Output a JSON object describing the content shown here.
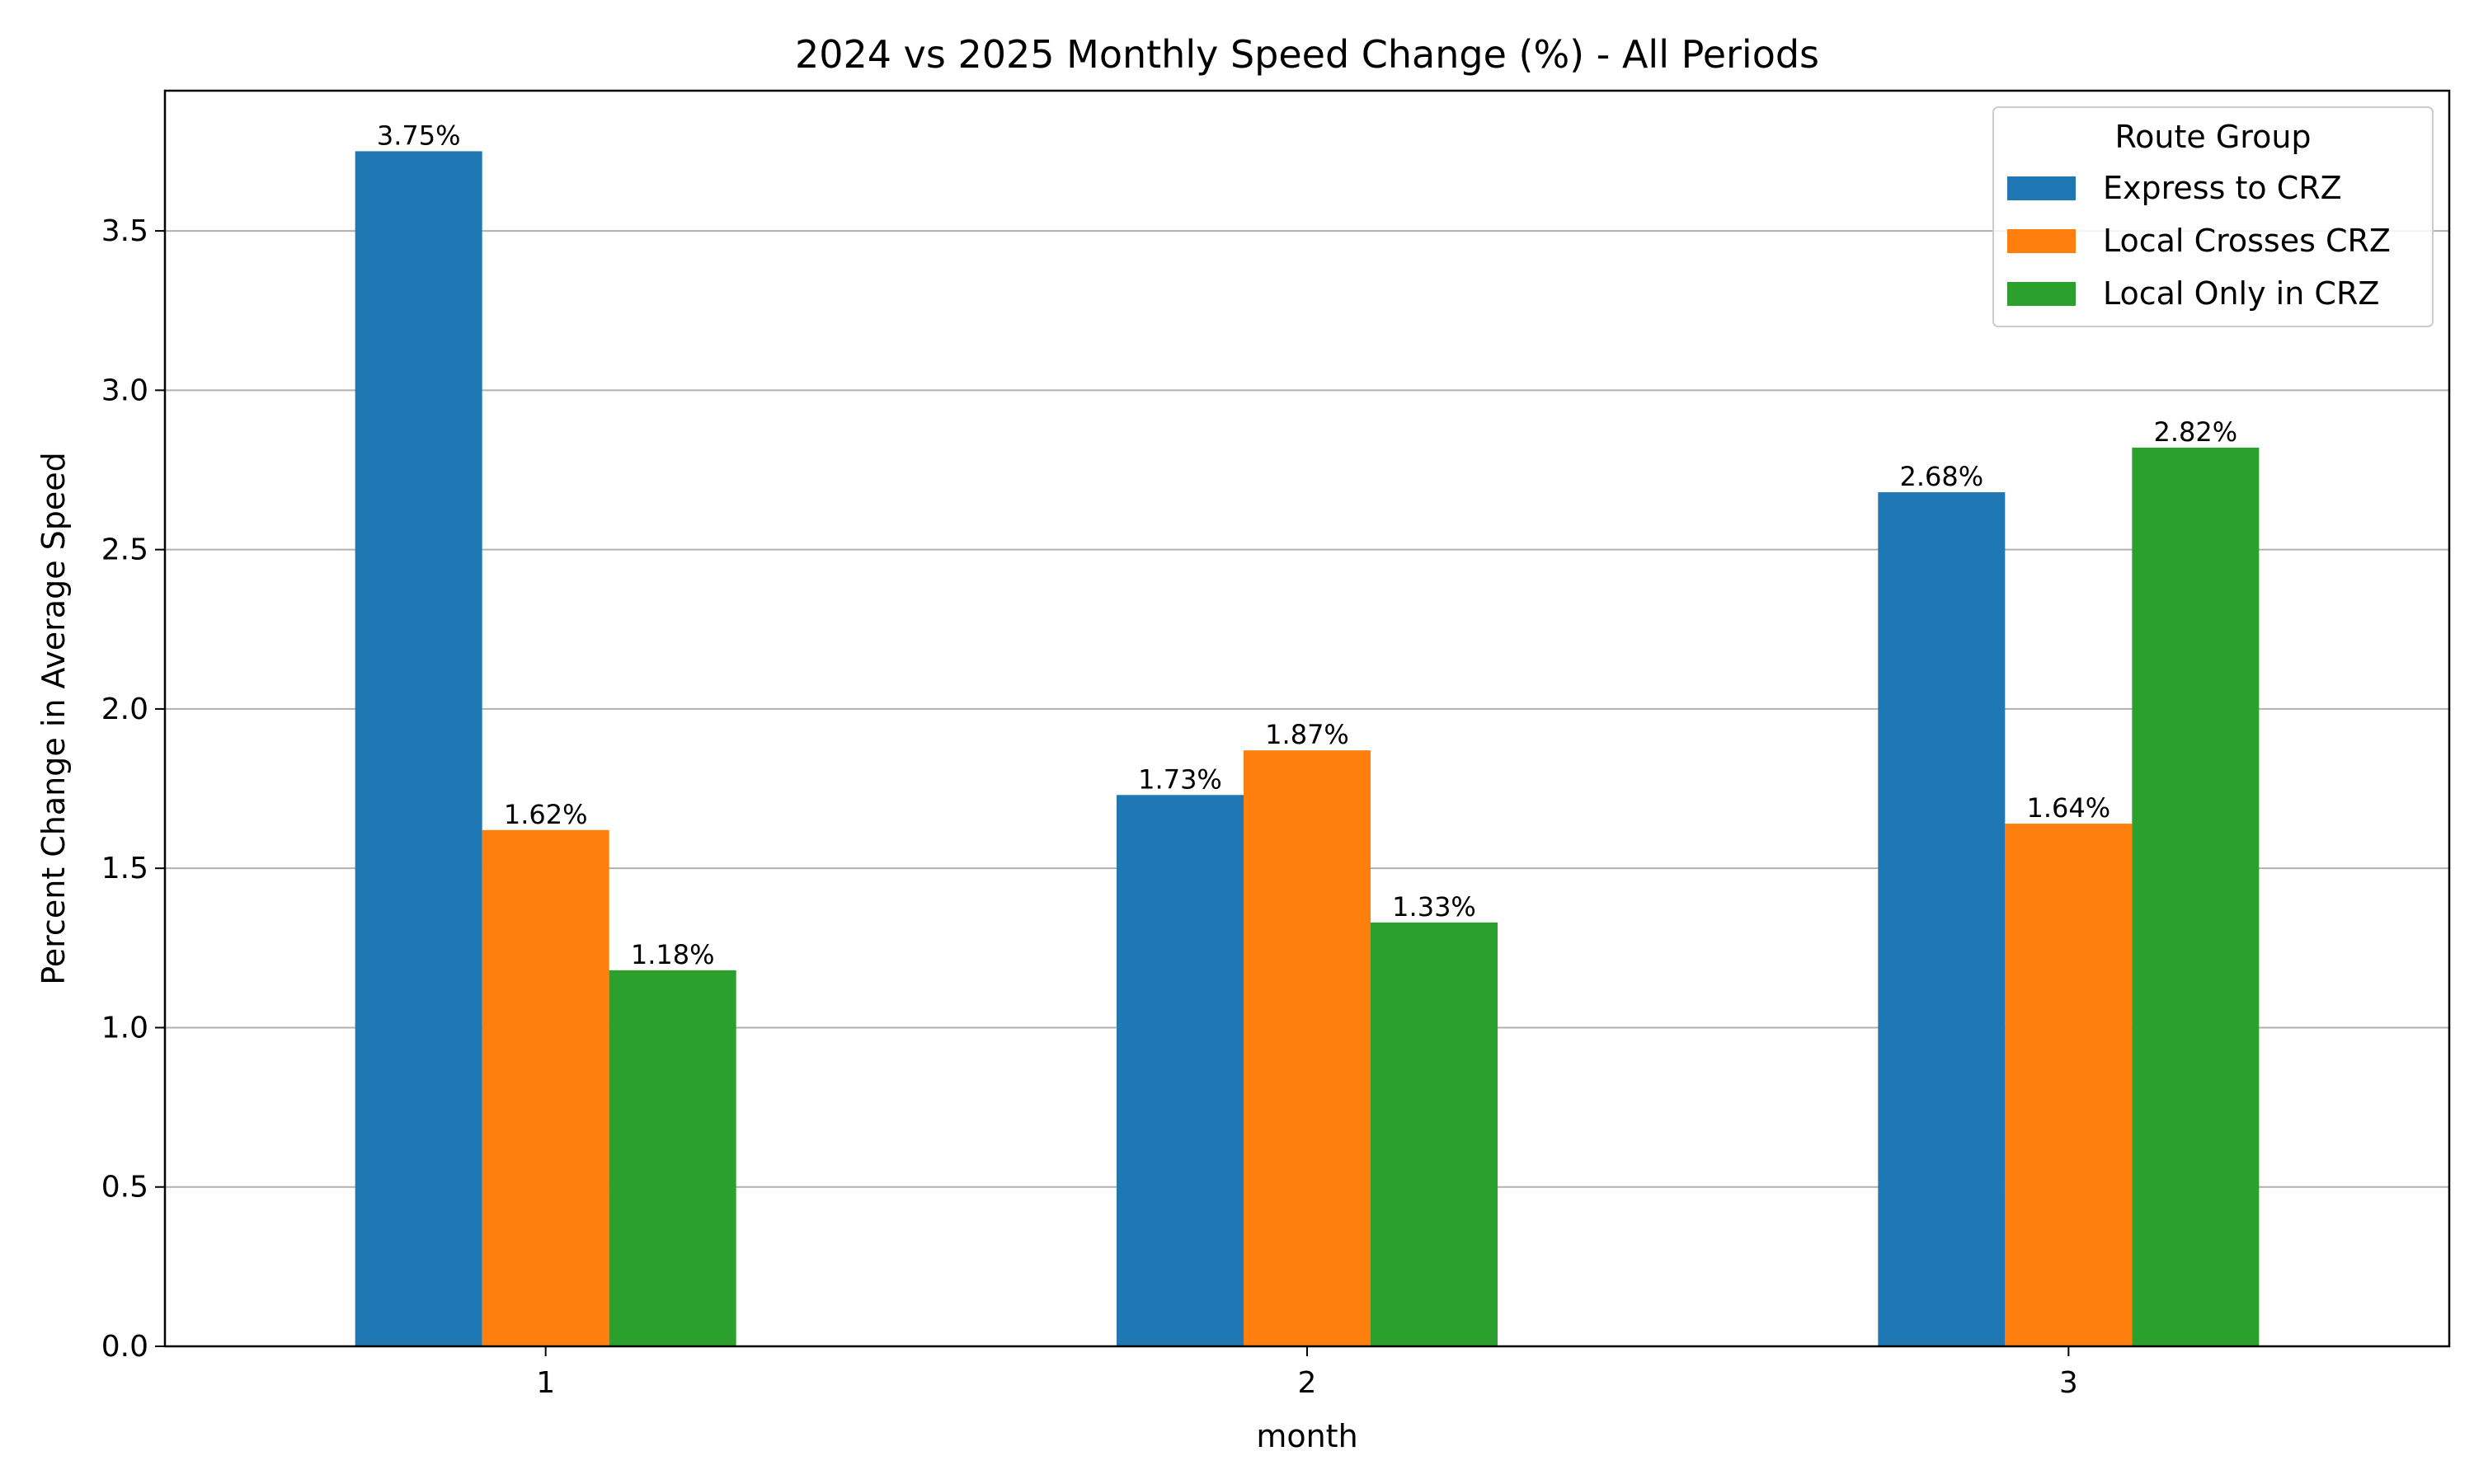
{
  "chart_data": {
    "type": "bar",
    "title": "2024 vs 2025 Monthly Speed Change (%) - All Periods",
    "xlabel": "month",
    "ylabel": "Percent Change in Average Speed",
    "categories": [
      "1",
      "2",
      "3"
    ],
    "ylim": [
      0,
      3.94
    ],
    "yticks": [
      0.0,
      0.5,
      1.0,
      1.5,
      2.0,
      2.5,
      3.0,
      3.5
    ],
    "ytick_labels": [
      "0.0",
      "0.5",
      "1.0",
      "1.5",
      "2.0",
      "2.5",
      "3.0",
      "3.5"
    ],
    "grid": "horizontal",
    "legend": {
      "title": "Route Group",
      "placement": "top-right"
    },
    "series": [
      {
        "name": "Express to CRZ",
        "color": "#1f77b4",
        "values": [
          3.75,
          1.73,
          2.68
        ],
        "labels": [
          "3.75%",
          "1.73%",
          "2.68%"
        ]
      },
      {
        "name": "Local Crosses CRZ",
        "color": "#ff7f0e",
        "values": [
          1.62,
          1.87,
          1.64
        ],
        "labels": [
          "1.62%",
          "1.87%",
          "1.64%"
        ]
      },
      {
        "name": "Local Only in CRZ",
        "color": "#2ca02c",
        "values": [
          1.18,
          1.33,
          2.82
        ],
        "labels": [
          "1.18%",
          "1.33%",
          "2.82%"
        ]
      }
    ]
  }
}
